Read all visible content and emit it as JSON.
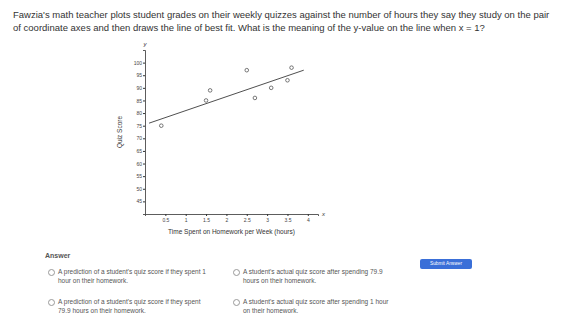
{
  "question": "Fawzia's math teacher plots student grades on their weekly quizzes against the number of hours they say they study on the pair of coordinate axes and then draws the line of best fit. What is the meaning of the y-value on the line when x = 1?",
  "chart_data": {
    "type": "scatter",
    "x_label": "Time Spent on Homework per Week (hours)",
    "y_label": "Quiz Score",
    "x_axis_name": "x",
    "y_axis_name": "y",
    "x": [
      0.4,
      1.5,
      1.6,
      2.5,
      2.7,
      3.1,
      3.5,
      3.6
    ],
    "values": [
      75,
      85,
      89,
      97,
      86,
      90,
      93,
      98
    ],
    "color": "#555555",
    "marker": "circle",
    "best_fit_line": {
      "x": [
        0.1,
        3.9
      ],
      "values": [
        76,
        97
      ]
    },
    "xlim": [
      0,
      4.25
    ],
    "xticks": [
      0.5,
      1,
      1.5,
      2,
      2.5,
      3,
      3.5,
      4
    ],
    "ylim": [
      40,
      105
    ],
    "yticks": [
      45,
      50,
      55,
      60,
      65,
      70,
      75,
      80,
      85,
      90,
      95,
      100
    ],
    "grid": false
  },
  "answer_label": "Answer",
  "options": [
    "A prediction of a student's quiz score if they spent 1 hour on their homework.",
    "A student's actual quiz score after spending 79.9 hours on their homework.",
    "A prediction of a student's quiz score if they spent 79.9 hours on their homework.",
    "A student's actual quiz score after spending 1 hour on their homework."
  ],
  "submit": "Submit Answer"
}
